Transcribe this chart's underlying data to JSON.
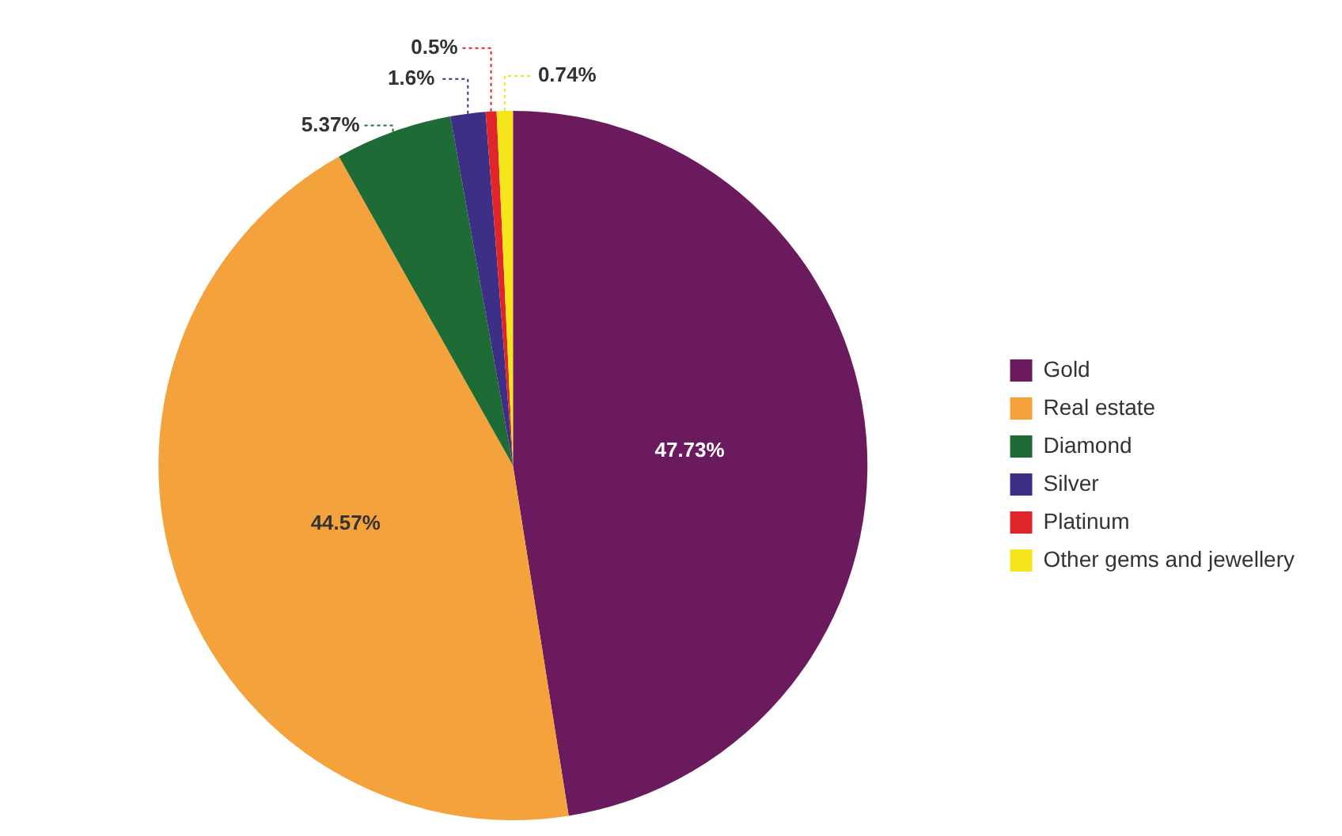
{
  "chart_data": {
    "type": "pie",
    "categories": [
      "Gold",
      "Real estate",
      "Diamond",
      "Silver",
      "Platinum",
      "Other gems and jewellery"
    ],
    "values": [
      47.73,
      44.57,
      5.37,
      1.6,
      0.5,
      0.74
    ],
    "colors": [
      "#6b1a5e",
      "#f4a23c",
      "#1f6b36",
      "#3d2f86",
      "#e1262b",
      "#f5e61c"
    ],
    "value_labels": [
      "47.73%",
      "44.57%",
      "5.37%",
      "1.6%",
      "0.5%",
      "0.74%"
    ],
    "legend": "right"
  }
}
